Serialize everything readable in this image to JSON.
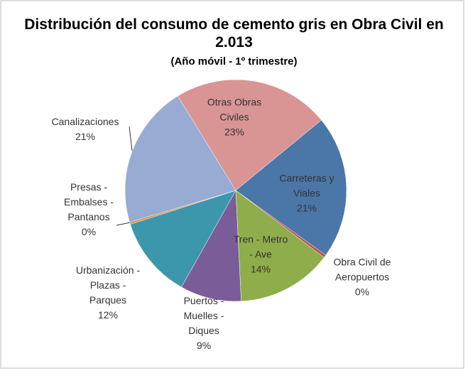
{
  "chart_data": {
    "type": "pie",
    "title": "Distribución  del  consumo  de cemento gris en Obra Civil en 2.013",
    "subtitle": "(Año móvil - 1º trimestre)",
    "categories": [
      "Otras Obras Civiles",
      "Carreteras y Viales",
      "Obra Civil de Aeropuertos",
      "Tren - Metro - Ave",
      "Puertos - Muelles - Diques",
      "Urbanización - Plazas - Parques",
      "Presas - Embalses - Pantanos",
      "Canalizaciones"
    ],
    "values": [
      23,
      21,
      0.4,
      14,
      9,
      12,
      0.3,
      21
    ],
    "value_labels": [
      "23%",
      "21%",
      "0%",
      "14%",
      "9%",
      "12%",
      "0%",
      "21%"
    ],
    "colors": [
      "#d99594",
      "#4a76a8",
      "#c0504d",
      "#8fad4a",
      "#7a5c99",
      "#3c97ad",
      "#e68a3a",
      "#97abd3"
    ]
  }
}
